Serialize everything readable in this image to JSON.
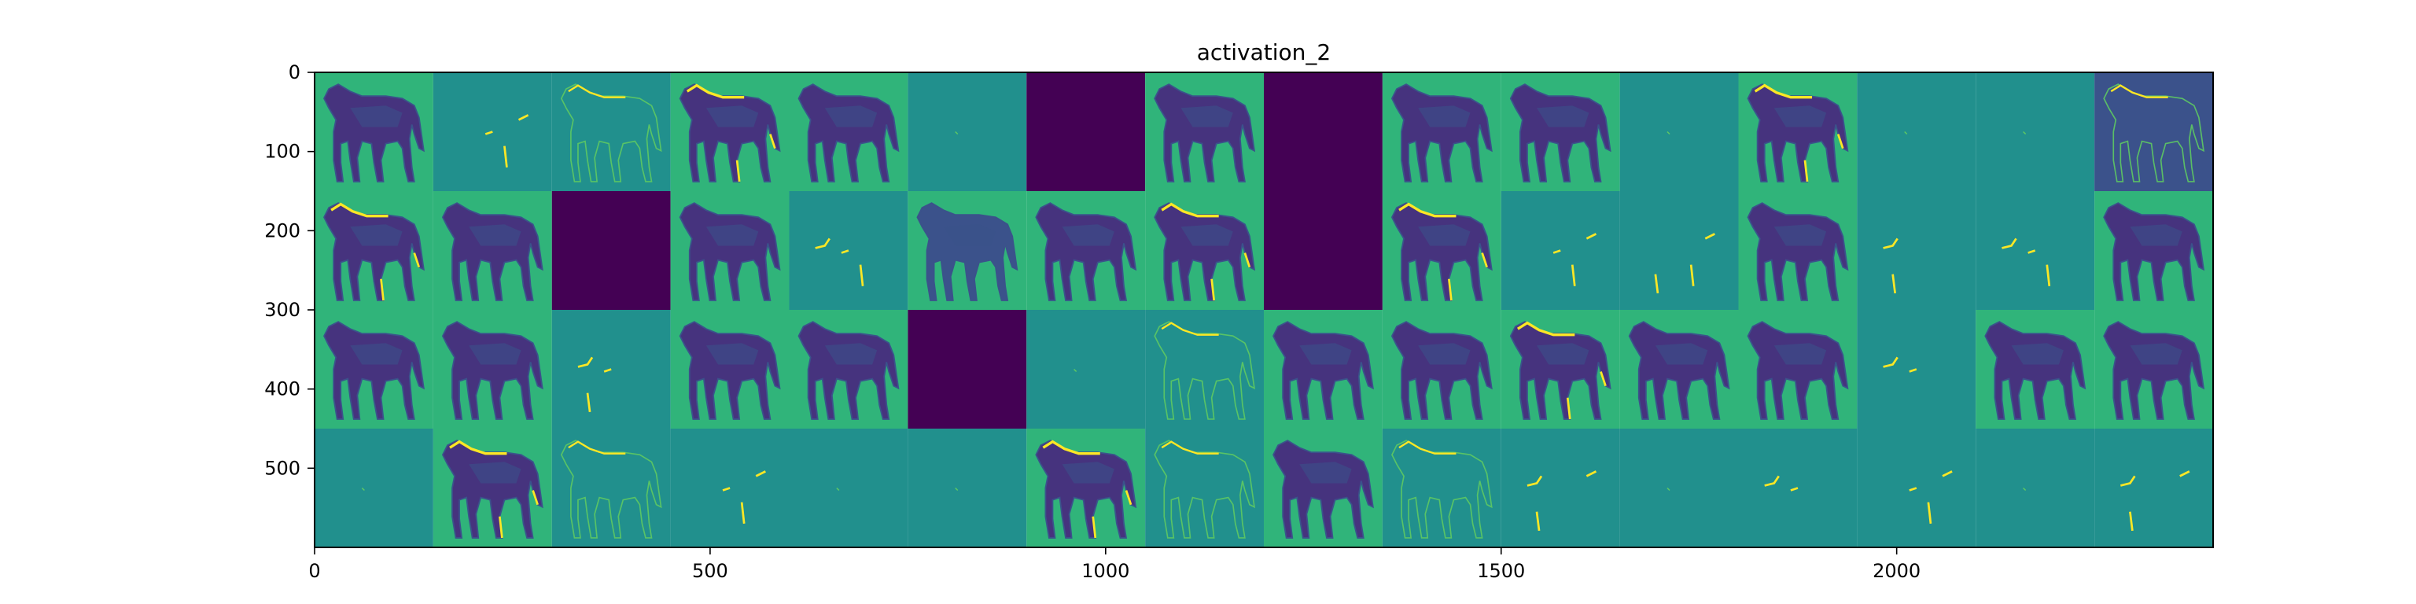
{
  "figure": {
    "title": "activation_2",
    "grid": {
      "rows": 4,
      "cols": 16,
      "tile_size": 150
    },
    "axes": {
      "x_ticks": [
        0,
        500,
        1000,
        1500,
        2000
      ],
      "y_ticks": [
        0,
        100,
        200,
        300,
        400,
        500
      ],
      "xlim": [
        0,
        2400
      ],
      "ylim": [
        600,
        0
      ]
    },
    "tiles": [
      [
        "horse",
        "edge",
        "edge-outline",
        "horse-edge",
        "horse",
        "flat",
        "dead",
        "horse",
        "dead",
        "horse",
        "horse",
        "flat",
        "horse-edge",
        "flat",
        "flat",
        "outline-dark"
      ],
      [
        "horse-edge",
        "horse",
        "dead",
        "horse",
        "edge",
        "horse-light",
        "horse",
        "horse-edge",
        "dead",
        "horse-edge",
        "edge",
        "edge",
        "horse",
        "flat-edge",
        "edge",
        "horse"
      ],
      [
        "horse",
        "horse",
        "edge",
        "horse",
        "horse",
        "dead",
        "flat",
        "edge-outline",
        "horse",
        "horse",
        "horse-edge",
        "horse",
        "horse",
        "flat-edge",
        "horse",
        "horse"
      ],
      [
        "flat",
        "horse-edge",
        "edge-outline",
        "edge",
        "flat",
        "flat",
        "horse-edge",
        "edge-outline",
        "horse",
        "edge-outline",
        "edge",
        "flat",
        "flat-edge",
        "edge",
        "flat",
        "edge"
      ]
    ],
    "colors": {
      "bright": "#30b47a",
      "mid": "#21908d",
      "dark": "#3b528b",
      "deep": "#46337e",
      "dead": "#440154",
      "edge": "#fde725",
      "light": "#5ec962"
    }
  }
}
